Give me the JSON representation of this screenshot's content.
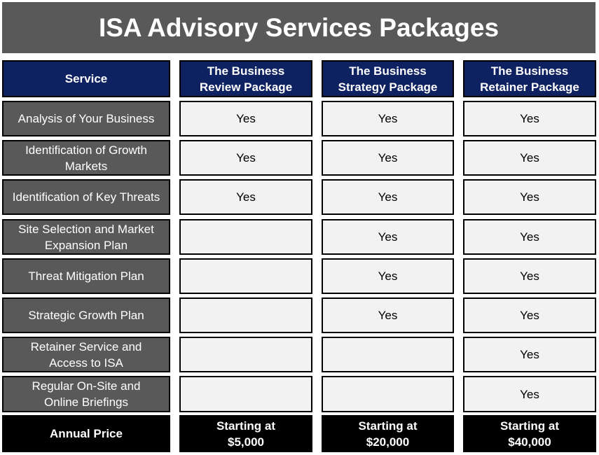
{
  "header": {
    "title": "ISA Advisory Services Packages"
  },
  "table": {
    "columns": [
      "Service",
      "The Business Review Package",
      "The Business Strategy Package",
      "The Business Retainer Package"
    ],
    "rows": [
      {
        "service": "Analysis of Your Business",
        "cells": [
          "Yes",
          "Yes",
          "Yes"
        ]
      },
      {
        "service": "Identification of Growth Markets",
        "cells": [
          "Yes",
          "Yes",
          "Yes"
        ]
      },
      {
        "service": "Identification of Key Threats",
        "cells": [
          "Yes",
          "Yes",
          "Yes"
        ]
      },
      {
        "service": "Site Selection and Market Expansion Plan",
        "cells": [
          null,
          "Yes",
          "Yes"
        ]
      },
      {
        "service": "Threat Mitigation Plan",
        "cells": [
          null,
          "Yes",
          "Yes"
        ]
      },
      {
        "service": "Strategic Growth Plan",
        "cells": [
          null,
          "Yes",
          "Yes"
        ]
      },
      {
        "service": "Retainer Service and Access to ISA",
        "cells": [
          null,
          null,
          "Yes"
        ]
      },
      {
        "service": "Regular On-Site and Online Briefings",
        "cells": [
          null,
          null,
          "Yes"
        ]
      }
    ],
    "price_row": {
      "label": "Annual Price",
      "cells": [
        "Starting at $5,000",
        "Starting at $20,000",
        "Starting at $40,000"
      ]
    }
  }
}
